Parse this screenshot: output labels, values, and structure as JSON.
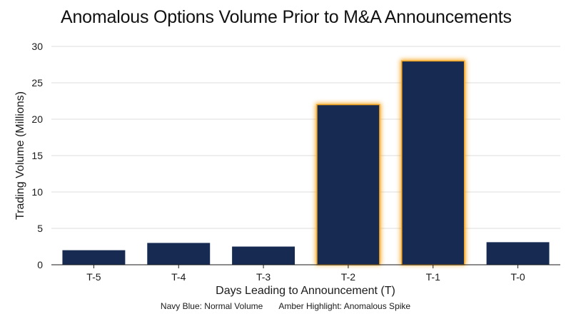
{
  "title": "Anomalous Options Volume Prior to M&A Announcements",
  "legend": {
    "normal": "Navy Blue: Normal Volume",
    "anomalous": "Amber Highlight: Anomalous Spike"
  },
  "colors": {
    "normal": "#162a52",
    "anomalous": "#162a52",
    "highlight": "#f5a623",
    "grid": "#dcdcdc"
  },
  "chart_data": {
    "type": "bar",
    "title": "Anomalous Options Volume Prior to M&A Announcements",
    "xlabel": "Days Leading to Announcement (T)",
    "ylabel": "Trading Volume (Millions)",
    "categories": [
      "T-5",
      "T-4",
      "T-3",
      "T-2",
      "T-1",
      "T-0"
    ],
    "values": [
      2.0,
      3.0,
      2.5,
      22.0,
      28.0,
      3.1
    ],
    "anomalous": [
      false,
      false,
      false,
      true,
      true,
      false
    ],
    "ylim": [
      0,
      30
    ],
    "yticks": [
      "0",
      "5",
      "10",
      "15",
      "20",
      "25",
      "30"
    ],
    "grid": true
  }
}
